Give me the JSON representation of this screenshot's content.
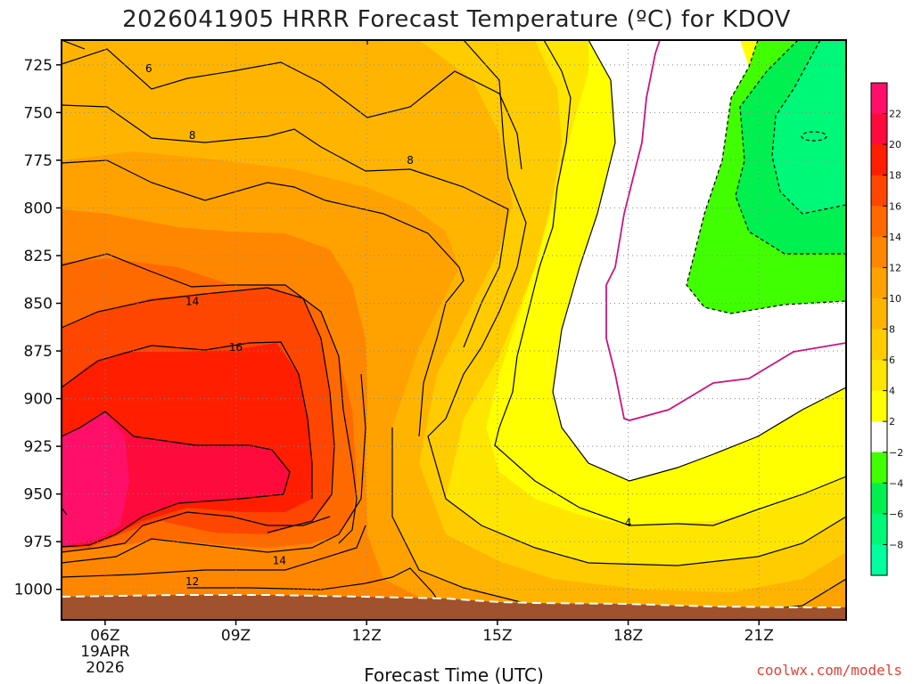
{
  "chart_data": {
    "type": "heatmap",
    "title": "2026041905 HRRR Forecast Temperature (ºC) for KDOV",
    "xlabel": "Forecast Time (UTC)",
    "ylabel": "",
    "x_ticks": [
      {
        "hour": 6,
        "label": "06Z",
        "sub1": "19APR",
        "sub2": "2026"
      },
      {
        "hour": 9,
        "label": "09Z"
      },
      {
        "hour": 12,
        "label": "12Z"
      },
      {
        "hour": 15,
        "label": "15Z"
      },
      {
        "hour": 18,
        "label": "18Z"
      },
      {
        "hour": 21,
        "label": "21Z"
      }
    ],
    "x_range_hours": [
      5,
      23
    ],
    "y_ticks": [
      725,
      750,
      775,
      800,
      825,
      850,
      875,
      900,
      925,
      950,
      975,
      1000
    ],
    "y_range_hpa": [
      712,
      1016
    ],
    "colorbar": {
      "levels": [
        22,
        20,
        18,
        16,
        14,
        12,
        10,
        8,
        6,
        4,
        2,
        -2,
        -4,
        -6,
        -8
      ],
      "colors": [
        "#ff0f68",
        "#ff0a3c",
        "#ff1e00",
        "#ff4600",
        "#ff6a00",
        "#ff8700",
        "#ffa200",
        "#ffb500",
        "#ffcc00",
        "#ffe600",
        "#ffff00",
        "#ffffff",
        "#40ff00",
        "#00f050",
        "#00f878",
        "#00ff9f"
      ],
      "labels": [
        "22",
        "20",
        "18",
        "16",
        "14",
        "12",
        "10",
        "8",
        "6",
        "4",
        "2",
        "−2",
        "−4",
        "−6",
        "−8"
      ]
    },
    "contour_labels": [
      {
        "value": "6",
        "hour": 7.0,
        "hpa": 727
      },
      {
        "value": "8",
        "hour": 8.0,
        "hpa": 762
      },
      {
        "value": "8",
        "hour": 13.0,
        "hpa": 775
      },
      {
        "value": "14",
        "hour": 8.0,
        "hpa": 849
      },
      {
        "value": "16",
        "hour": 9.0,
        "hpa": 873
      },
      {
        "value": "14",
        "hour": 10.0,
        "hpa": 985
      },
      {
        "value": "12",
        "hour": 8.0,
        "hpa": 996
      },
      {
        "value": "4",
        "hour": 18.0,
        "hpa": 965
      }
    ],
    "series_description": "Temperature max ~22C near 06Z at 925-950 hPa; freezing line near 18Z; cold core near 22Z at 760 hPa"
  },
  "credit": "coolwx.com/models",
  "colors": {
    "ground": "#a0522d",
    "freezing_line": "#c71585",
    "credit": "#e34234"
  }
}
